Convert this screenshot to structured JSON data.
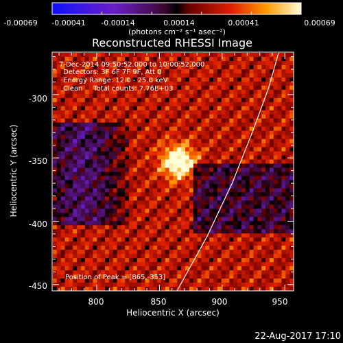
{
  "colorbar": {
    "tick_labels": [
      "-0.00069",
      "-0.00041",
      "-0.00014",
      "0.00014",
      "0.00041",
      "0.00069"
    ],
    "unit_label": "(photons cm⁻² s⁻¹ asec⁻²)",
    "range": [
      -0.00069,
      0.00069
    ]
  },
  "chart_data": {
    "type": "heatmap",
    "title": "Reconstructed RHESSI Image",
    "xlabel": "Heliocentric X (arcsec)",
    "ylabel": "Heliocentric Y (arcsec)",
    "xlim": [
      765,
      957
    ],
    "ylim": [
      -455,
      -267
    ],
    "x_ticks": [
      800,
      850,
      900,
      950
    ],
    "y_ticks": [
      -300,
      -350,
      -400,
      -450
    ],
    "peak": {
      "x": 865,
      "y": -353
    },
    "limb_points": [
      [
        864,
        -455
      ],
      [
        888,
        -412
      ],
      [
        908,
        -370
      ],
      [
        924,
        -330
      ],
      [
        937,
        -295
      ],
      [
        945,
        -267
      ]
    ],
    "annotations": [
      "7-Dec-2014 09:50:52.000 to 10:00:52.000",
      "Detectors: 3F 6F 7F 9F, Att 0",
      "Energy Range: 12.0 - 25.0 keV",
      "Clean     Total counts: 7.76E+03"
    ],
    "peak_label": "Position of Peak = [865,-353]",
    "grid": false
  },
  "footer": {
    "timestamp": "22-Aug-2017 17:10"
  }
}
